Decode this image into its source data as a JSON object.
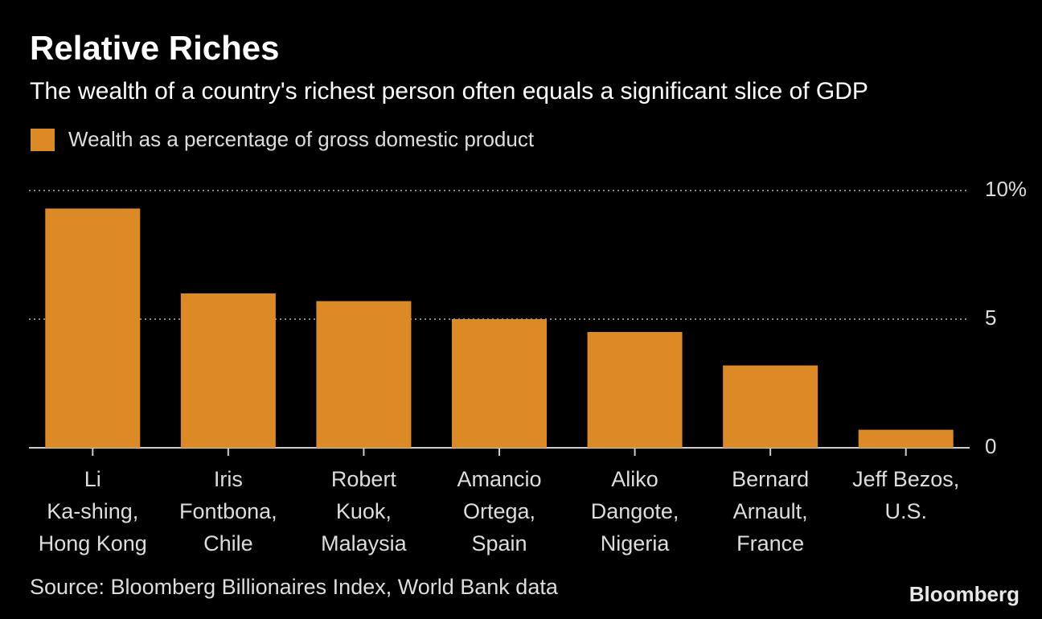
{
  "chart_data": {
    "type": "bar",
    "title": "Relative Riches",
    "subtitle": "The wealth of a country's richest person often equals a significant slice of GDP",
    "series": [
      {
        "name": "Wealth as a percentage of gross domestic product",
        "color": "#dc8a25",
        "values": [
          9.3,
          6.0,
          5.7,
          5.0,
          4.5,
          3.2,
          0.7
        ]
      }
    ],
    "categories": [
      [
        "Li",
        "Ka-shing,",
        "Hong Kong"
      ],
      [
        "Iris",
        "Fontbona,",
        "Chile"
      ],
      [
        "Robert",
        "Kuok,",
        "Malaysia"
      ],
      [
        "Amancio",
        "Ortega,",
        "Spain"
      ],
      [
        "Aliko",
        "Dangote,",
        "Nigeria"
      ],
      [
        "Bernard",
        "Arnault,",
        "France"
      ],
      [
        "Jeff Bezos,",
        "U.S."
      ]
    ],
    "ylim": [
      0,
      10
    ],
    "yticks": [
      0,
      5,
      {
        "value": 10,
        "label": "10%"
      }
    ],
    "grid": true,
    "source": "Source: Bloomberg Billionaires Index, World Bank data",
    "brand": "Bloomberg"
  }
}
